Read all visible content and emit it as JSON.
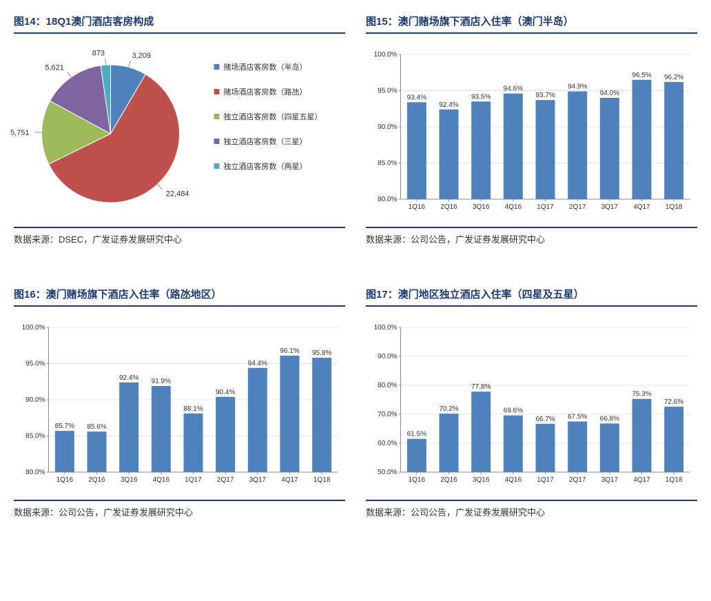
{
  "panels": {
    "p14": {
      "title": "图14：18Q1澳门酒店客房构成",
      "source": "数据来源：DSEC，广发证券发展研究中心",
      "chart": {
        "type": "pie",
        "slices": [
          {
            "label": "赌场酒店客房数（半岛）",
            "value": 3209,
            "display": "3,209",
            "color": "#4f81bd"
          },
          {
            "label": "赌场酒店客房数（路氹）",
            "value": 22484,
            "display": "22,484",
            "color": "#c0504d"
          },
          {
            "label": "独立酒店客房数（四星五星）",
            "value": 5751,
            "display": "5,751",
            "color": "#9bbb59"
          },
          {
            "label": "独立酒店客房数（三星）",
            "value": 5621,
            "display": "5,621",
            "color": "#8064a2"
          },
          {
            "label": "独立酒店客房数（两星）",
            "value": 873,
            "display": "873",
            "color": "#4bacc6"
          }
        ],
        "value_fontsize": 11,
        "legend_fontsize": 11,
        "legend_marker": "square",
        "background_color": "#ffffff"
      }
    },
    "p15": {
      "title": "图15：澳门赌场旗下酒店入住率（澳门半岛）",
      "source": "数据来源：公司公告，广发证券发展研究中心",
      "chart": {
        "type": "bar",
        "categories": [
          "1Q16",
          "2Q16",
          "3Q16",
          "4Q16",
          "1Q17",
          "2Q17",
          "3Q17",
          "4Q17",
          "1Q18"
        ],
        "values": [
          93.4,
          92.4,
          93.5,
          94.6,
          93.7,
          94.9,
          94.0,
          96.5,
          96.2
        ],
        "bar_color": "#4f81bd",
        "ylim": [
          80,
          100
        ],
        "ytick_step": 5,
        "y_format": "percent",
        "bar_width": 0.6,
        "grid_color": "#cccccc",
        "axis_color": "#888888",
        "label_fontsize": 10,
        "background_color": "#ffffff"
      }
    },
    "p16": {
      "title": "图16：澳门赌场旗下酒店入住率（路氹地区）",
      "source": "数据来源：公司公告，广发证券发展研究中心",
      "chart": {
        "type": "bar",
        "categories": [
          "1Q16",
          "2Q16",
          "3Q16",
          "4Q16",
          "1Q17",
          "2Q17",
          "3Q17",
          "4Q17",
          "1Q18"
        ],
        "values": [
          85.7,
          85.6,
          92.4,
          91.9,
          88.1,
          90.4,
          94.4,
          96.1,
          95.8
        ],
        "bar_color": "#4f81bd",
        "ylim": [
          80,
          100
        ],
        "ytick_step": 5,
        "y_format": "percent",
        "bar_width": 0.6,
        "grid_color": "#cccccc",
        "axis_color": "#888888",
        "label_fontsize": 10,
        "background_color": "#ffffff"
      }
    },
    "p17": {
      "title": "图17：澳门地区独立酒店入住率（四星及五星）",
      "source": "数据来源：公司公告，广发证券发展研究中心",
      "chart": {
        "type": "bar",
        "categories": [
          "1Q16",
          "2Q16",
          "3Q16",
          "4Q16",
          "1Q17",
          "2Q17",
          "3Q17",
          "4Q17",
          "1Q18"
        ],
        "values": [
          61.5,
          70.2,
          77.8,
          69.6,
          66.7,
          67.5,
          66.8,
          75.3,
          72.6
        ],
        "bar_color": "#4f81bd",
        "ylim": [
          50,
          100
        ],
        "ytick_step": 10,
        "y_format": "percent",
        "bar_width": 0.6,
        "grid_color": "#cccccc",
        "axis_color": "#888888",
        "label_fontsize": 10,
        "background_color": "#ffffff"
      }
    }
  }
}
